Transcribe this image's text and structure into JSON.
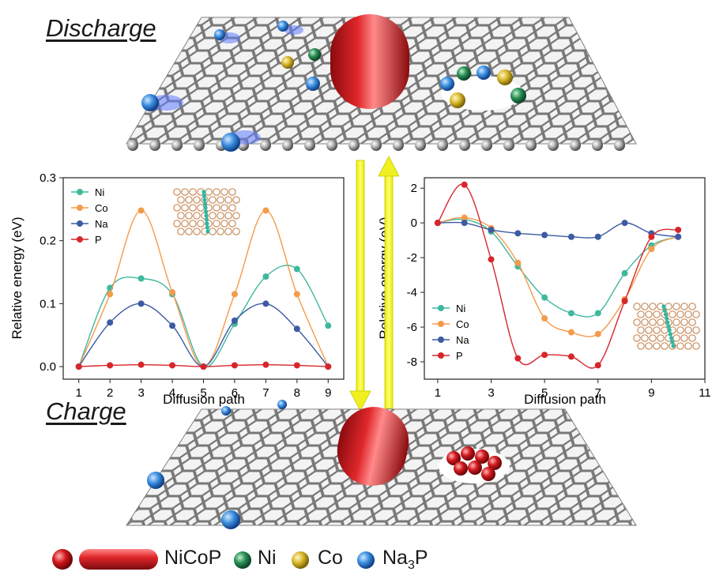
{
  "labels": {
    "discharge": "Discharge",
    "charge": "Charge"
  },
  "colors": {
    "Ni": "#2a8f55",
    "Co": "#d9b72b",
    "Na3P": "#3b8fe0",
    "NiCoP": "#d0161b",
    "arrow": "#f2f21a",
    "graphene": "#8c8c8c"
  },
  "chart_data": [
    {
      "type": "line",
      "xlabel": "Diffusion path",
      "ylabel": "Relative energy (eV)",
      "xlim": [
        0.5,
        9.5
      ],
      "ylim": [
        -0.02,
        0.3
      ],
      "xticks": [
        "1",
        "2",
        "3",
        "4",
        "5",
        "6",
        "7",
        "8",
        "9"
      ],
      "yticks": [
        "0.0",
        "0.1",
        "0.2",
        "0.3"
      ],
      "legend": "top-left",
      "x": [
        1,
        2,
        3,
        4,
        5,
        6,
        7,
        8,
        9
      ],
      "series": [
        {
          "name": "Ni",
          "color": "#3fb89d",
          "values": [
            0.0,
            0.125,
            0.14,
            0.115,
            0.0,
            0.068,
            0.143,
            0.155,
            0.065
          ]
        },
        {
          "name": "Co",
          "color": "#f59a4a",
          "values": [
            0.0,
            0.115,
            0.248,
            0.118,
            0.0,
            0.115,
            0.248,
            0.115,
            0.0
          ]
        },
        {
          "name": "Na",
          "color": "#3d5aa3",
          "values": [
            0.0,
            0.07,
            0.1,
            0.065,
            0.0,
            0.073,
            0.1,
            0.06,
            0.0
          ]
        },
        {
          "name": "P",
          "color": "#d7262b",
          "values": [
            0.0,
            0.002,
            0.003,
            0.002,
            0.0,
            0.002,
            0.003,
            0.002,
            0.0
          ]
        }
      ]
    },
    {
      "type": "line",
      "xlabel": "Diffusion path",
      "ylabel": "Relative energy (eV)",
      "xlim": [
        0.5,
        11
      ],
      "ylim": [
        -9,
        2.6
      ],
      "xticks": [
        "1",
        "3",
        "5",
        "7",
        "9",
        "11"
      ],
      "yticks": [
        "2",
        "0",
        "-2",
        "-4",
        "-6",
        "-8"
      ],
      "legend": "bottom-left",
      "x": [
        1,
        2,
        3,
        4,
        5,
        6,
        7,
        8,
        9,
        10
      ],
      "series": [
        {
          "name": "Ni",
          "color": "#3fb89d",
          "values": [
            0.0,
            0.2,
            -0.5,
            -2.5,
            -4.3,
            -5.2,
            -5.2,
            -2.9,
            -1.3,
            -0.8
          ]
        },
        {
          "name": "Co",
          "color": "#f59a4a",
          "values": [
            0.0,
            0.3,
            -0.3,
            -2.3,
            -5.5,
            -6.3,
            -6.4,
            -4.4,
            -1.5,
            -0.8
          ]
        },
        {
          "name": "Na",
          "color": "#3d5aa3",
          "values": [
            0.0,
            0.0,
            -0.4,
            -0.6,
            -0.7,
            -0.8,
            -0.8,
            0.0,
            -0.6,
            -0.8
          ]
        },
        {
          "name": "P",
          "color": "#d7262b",
          "values": [
            0.0,
            2.2,
            -2.1,
            -7.8,
            -7.6,
            -7.7,
            -8.2,
            -4.5,
            -0.8,
            -0.4
          ]
        }
      ]
    }
  ],
  "legend": {
    "nicop": "NiCoP",
    "ni": "Ni",
    "co": "Co",
    "na3p_main": "Na",
    "na3p_sub": "3",
    "na3p_tail": "P"
  }
}
